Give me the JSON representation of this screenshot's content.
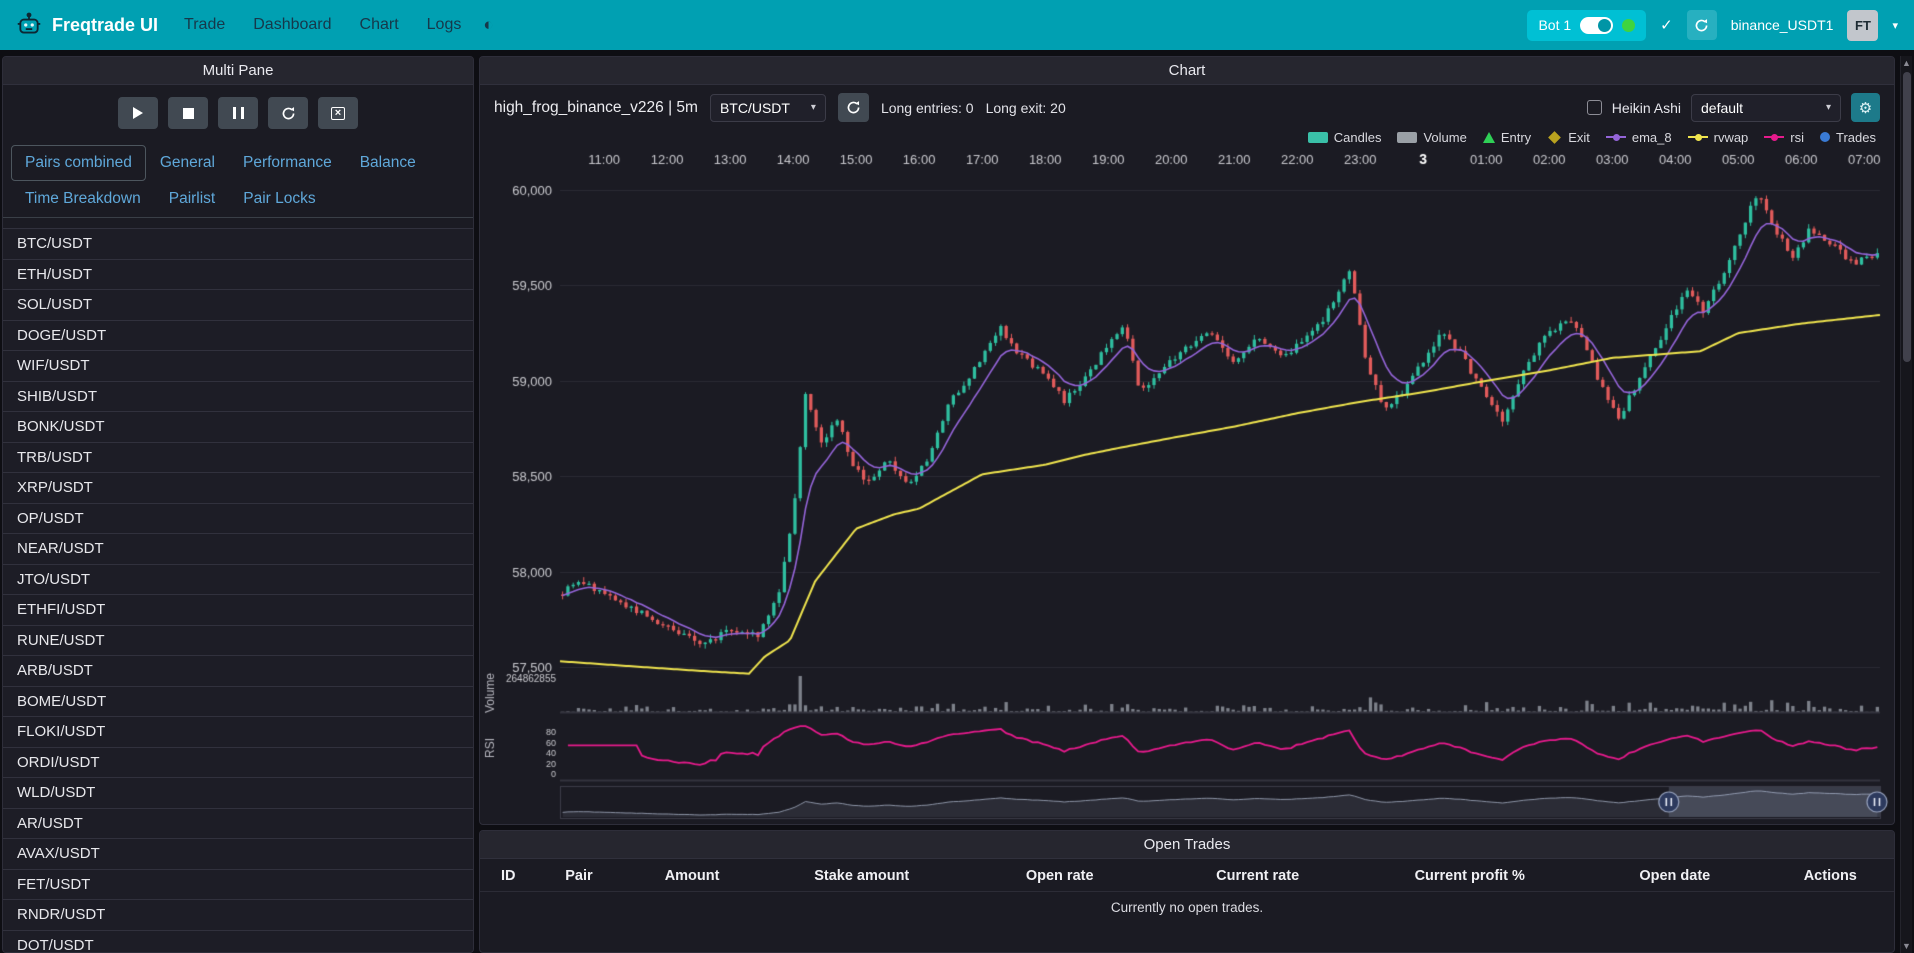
{
  "navbar": {
    "brand": "Freqtrade UI",
    "items": [
      "Trade",
      "Dashboard",
      "Chart",
      "Logs"
    ],
    "bot_chip": {
      "label": "Bot 1",
      "online_color": "#3fd43f"
    },
    "exchange_account": "binance_USDT1",
    "avatar_initials": "FT"
  },
  "left_panel": {
    "title": "Multi Pane",
    "tabs": {
      "row1": [
        "Pairs combined",
        "General",
        "Performance",
        "Balance"
      ],
      "row2": [
        "Time Breakdown",
        "Pairlist",
        "Pair Locks"
      ],
      "active": "Pairs combined"
    },
    "pairs": [
      "BTC/USDT",
      "ETH/USDT",
      "SOL/USDT",
      "DOGE/USDT",
      "WIF/USDT",
      "SHIB/USDT",
      "BONK/USDT",
      "TRB/USDT",
      "XRP/USDT",
      "OP/USDT",
      "NEAR/USDT",
      "JTO/USDT",
      "ETHFI/USDT",
      "RUNE/USDT",
      "ARB/USDT",
      "BOME/USDT",
      "FLOKI/USDT",
      "ORDI/USDT",
      "WLD/USDT",
      "AR/USDT",
      "AVAX/USDT",
      "FET/USDT",
      "RNDR/USDT",
      "DOT/USDT"
    ]
  },
  "chart_panel": {
    "title": "Chart",
    "strategy_label": "high_frog_binance_v226 | 5m",
    "pair_select_value": "BTC/USDT",
    "long_entries": "Long entries: 0",
    "long_exits": "Long exit: 20",
    "heikin_ashi_label": "Heikin Ashi",
    "plot_config_value": "default",
    "legend": [
      {
        "label": "Candles",
        "color": "#3ac0a8",
        "shape": "rect"
      },
      {
        "label": "Volume",
        "color": "#9aa0a6",
        "shape": "rect"
      },
      {
        "label": "Entry",
        "color": "#2fd056",
        "shape": "triangle"
      },
      {
        "label": "Exit",
        "color": "#b9a21f",
        "shape": "diamond"
      },
      {
        "label": "ema_8",
        "color": "#9464d8",
        "shape": "line"
      },
      {
        "label": "rvwap",
        "color": "#efe44e",
        "shape": "line"
      },
      {
        "label": "rsi",
        "color": "#e61a8c",
        "shape": "line"
      },
      {
        "label": "Trades",
        "color": "#3a7bd5",
        "shape": "dot"
      }
    ]
  },
  "chart_data": {
    "type": "candlestick",
    "pair": "BTC/USDT",
    "timeframe": "5m",
    "x_ticks": [
      "11:00",
      "12:00",
      "13:00",
      "14:00",
      "15:00",
      "16:00",
      "17:00",
      "18:00",
      "19:00",
      "20:00",
      "21:00",
      "22:00",
      "23:00",
      "3",
      "01:00",
      "02:00",
      "03:00",
      "04:00",
      "05:00",
      "06:00",
      "07:00"
    ],
    "bold_tick": "3",
    "y_ticks": [
      {
        "v": 60000,
        "label": "60,000"
      },
      {
        "v": 59500,
        "label": "59,500"
      },
      {
        "v": 59000,
        "label": "59,000"
      },
      {
        "v": 58500,
        "label": "58,500"
      },
      {
        "v": 58000,
        "label": "58,000"
      },
      {
        "v": 57500,
        "label": "57,500"
      }
    ],
    "ylim": [
      57450,
      60100
    ],
    "volume_axis_label": "264862855",
    "volume_pane_label": "Volume",
    "rsi_pane_label": "RSI",
    "rsi_ticks": [
      80,
      60,
      40,
      20,
      0
    ],
    "candle_count": 250,
    "hours_span": [
      -0.7,
      20.25
    ],
    "nav_window": [
      0.84,
      1.0
    ],
    "price_anchors": [
      [
        -0.7,
        57880
      ],
      [
        -0.35,
        57950
      ],
      [
        0,
        57880
      ],
      [
        0.6,
        57780
      ],
      [
        1.1,
        57690
      ],
      [
        1.6,
        57620
      ],
      [
        2.0,
        57700
      ],
      [
        2.45,
        57670
      ],
      [
        2.75,
        57860
      ],
      [
        3.0,
        58300
      ],
      [
        3.2,
        58950
      ],
      [
        3.45,
        58680
      ],
      [
        3.7,
        58800
      ],
      [
        3.95,
        58560
      ],
      [
        4.15,
        58460
      ],
      [
        4.5,
        58580
      ],
      [
        4.8,
        58460
      ],
      [
        5.1,
        58560
      ],
      [
        5.5,
        58900
      ],
      [
        5.9,
        59070
      ],
      [
        6.3,
        59280
      ],
      [
        6.6,
        59130
      ],
      [
        7.0,
        59040
      ],
      [
        7.3,
        58890
      ],
      [
        7.6,
        59000
      ],
      [
        8.0,
        59190
      ],
      [
        8.25,
        59280
      ],
      [
        8.5,
        58950
      ],
      [
        8.85,
        59060
      ],
      [
        9.2,
        59160
      ],
      [
        9.6,
        59270
      ],
      [
        10.0,
        59090
      ],
      [
        10.4,
        59230
      ],
      [
        10.8,
        59130
      ],
      [
        11.2,
        59230
      ],
      [
        11.6,
        59410
      ],
      [
        11.85,
        59600
      ],
      [
        12.1,
        59080
      ],
      [
        12.4,
        58850
      ],
      [
        12.7,
        58960
      ],
      [
        13.0,
        59110
      ],
      [
        13.3,
        59260
      ],
      [
        13.6,
        59140
      ],
      [
        13.95,
        58940
      ],
      [
        14.25,
        58790
      ],
      [
        14.6,
        59060
      ],
      [
        15.0,
        59260
      ],
      [
        15.4,
        59320
      ],
      [
        15.8,
        58990
      ],
      [
        16.1,
        58800
      ],
      [
        16.5,
        59060
      ],
      [
        16.9,
        59300
      ],
      [
        17.15,
        59470
      ],
      [
        17.45,
        59370
      ],
      [
        17.75,
        59550
      ],
      [
        18.05,
        59790
      ],
      [
        18.3,
        59980
      ],
      [
        18.55,
        59820
      ],
      [
        18.85,
        59650
      ],
      [
        19.15,
        59800
      ],
      [
        19.5,
        59710
      ],
      [
        19.8,
        59620
      ],
      [
        20.25,
        59660
      ]
    ],
    "vwap_anchors": [
      [
        -0.7,
        57530
      ],
      [
        0.6,
        57500
      ],
      [
        1.5,
        57480
      ],
      [
        2.3,
        57465
      ],
      [
        2.55,
        57555
      ],
      [
        2.95,
        57640
      ],
      [
        3.35,
        57950
      ],
      [
        4.0,
        58225
      ],
      [
        4.6,
        58300
      ],
      [
        5.0,
        58330
      ],
      [
        6.0,
        58510
      ],
      [
        7.0,
        58560
      ],
      [
        7.6,
        58610
      ],
      [
        8.2,
        58650
      ],
      [
        9.0,
        58700
      ],
      [
        10.0,
        58760
      ],
      [
        11.0,
        58830
      ],
      [
        12.0,
        58890
      ],
      [
        13.0,
        58940
      ],
      [
        14.0,
        59000
      ],
      [
        15.0,
        59055
      ],
      [
        16.0,
        59120
      ],
      [
        16.8,
        59140
      ],
      [
        17.4,
        59155
      ],
      [
        18.0,
        59250
      ],
      [
        19.0,
        59300
      ],
      [
        20.25,
        59345
      ]
    ],
    "colors": {
      "up": "#2fbfa0",
      "down": "#e25b5b",
      "ema": "#9464d8",
      "vwap": "#efe44e",
      "rsi": "#e61a8c",
      "volume": "#8e939c",
      "grid": "#2b2b34",
      "axis_text": "#c9c9ce"
    }
  },
  "open_trades": {
    "title": "Open Trades",
    "columns": [
      "ID",
      "Pair",
      "Amount",
      "Stake amount",
      "Open rate",
      "Current rate",
      "Current profit %",
      "Open date",
      "Actions"
    ],
    "empty_message": "Currently no open trades."
  }
}
